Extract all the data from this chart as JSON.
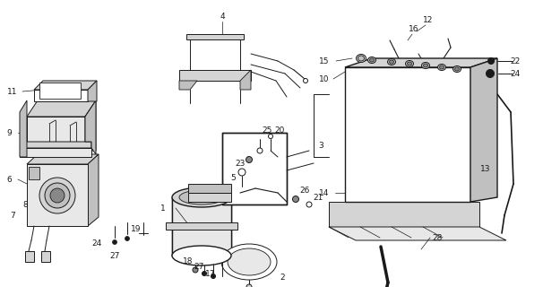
{
  "bg_color": "#ffffff",
  "line_color": "#1a1a1a",
  "fig_width": 6.06,
  "fig_height": 3.2,
  "dpi": 100,
  "gray_light": "#e8e8e8",
  "gray_mid": "#c0c0c0",
  "gray_dark": "#888888",
  "gray_fill": "#d4d4d4",
  "black": "#1a1a1a",
  "white": "#ffffff"
}
